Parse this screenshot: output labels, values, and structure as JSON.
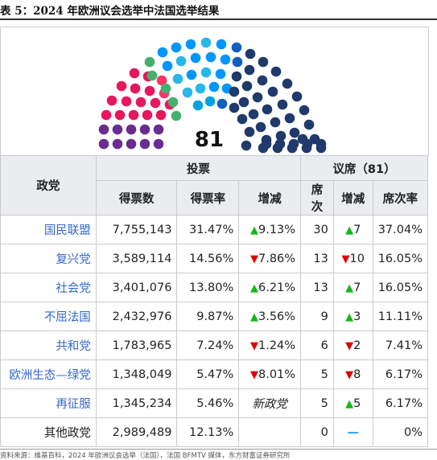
{
  "title": "表 5：2024 年欧洲议会选举中法国选举结果",
  "seat_total": "81",
  "seat_colors": [
    "#6a2c91",
    "#e8175d",
    "#ff3366",
    "#45b06e",
    "#0096ff",
    "#29b6e8",
    "#00a3e0",
    "#1060c0",
    "#1f3a6b"
  ],
  "header": {
    "party": "政党",
    "votes_group": "投票",
    "seats_group": "议席（81）",
    "votes": "得票数",
    "pct": "得票率",
    "change": "增减",
    "seats": "席次",
    "seat_change": "增减",
    "seat_pct": "席次率"
  },
  "rows": [
    {
      "party": "国民联盟",
      "votes": "7,755,143",
      "pct": "31.47%",
      "chg_dir": "up",
      "chg": "9.13%",
      "seats": "30",
      "seat_dir": "up",
      "seat_chg": "7",
      "seat_pct": "37.04%"
    },
    {
      "party": "复兴党",
      "votes": "3,589,114",
      "pct": "14.56%",
      "chg_dir": "down",
      "chg": "7.86%",
      "seats": "13",
      "seat_dir": "down",
      "seat_chg": "10",
      "seat_pct": "16.05%"
    },
    {
      "party": "社会党",
      "votes": "3,401,076",
      "pct": "13.80%",
      "chg_dir": "up",
      "chg": "6.21%",
      "seats": "13",
      "seat_dir": "up",
      "seat_chg": "7",
      "seat_pct": "16.05%"
    },
    {
      "party": "不屈法国",
      "votes": "2,432,976",
      "pct": "9.87%",
      "chg_dir": "up",
      "chg": "3.56%",
      "seats": "9",
      "seat_dir": "up",
      "seat_chg": "3",
      "seat_pct": "11.11%"
    },
    {
      "party": "共和党",
      "votes": "1,783,965",
      "pct": "7.24%",
      "chg_dir": "down",
      "chg": "1.24%",
      "seats": "6",
      "seat_dir": "down",
      "seat_chg": "2",
      "seat_pct": "7.41%"
    },
    {
      "party": "欧洲生态—绿党",
      "votes": "1,348,049",
      "pct": "5.47%",
      "chg_dir": "down",
      "chg": "8.01%",
      "seats": "5",
      "seat_dir": "down",
      "seat_chg": "8",
      "seat_pct": "6.17%"
    },
    {
      "party": "再征服",
      "votes": "1,345,234",
      "pct": "5.46%",
      "chg_dir": "new",
      "chg": "新政党",
      "seats": "5",
      "seat_dir": "up",
      "seat_chg": "5",
      "seat_pct": "6.17%"
    },
    {
      "party": "其他政党",
      "votes": "2,989,489",
      "pct": "12.13%",
      "chg_dir": "none",
      "chg": "",
      "seats": "0",
      "seat_dir": "none",
      "seat_chg": "",
      "seat_pct": "0%"
    }
  ],
  "source": "资料来源：维基百科，2024 年欧洲议会选举（法国），法国 BFMTV 媒体，东方财富证券研究所"
}
